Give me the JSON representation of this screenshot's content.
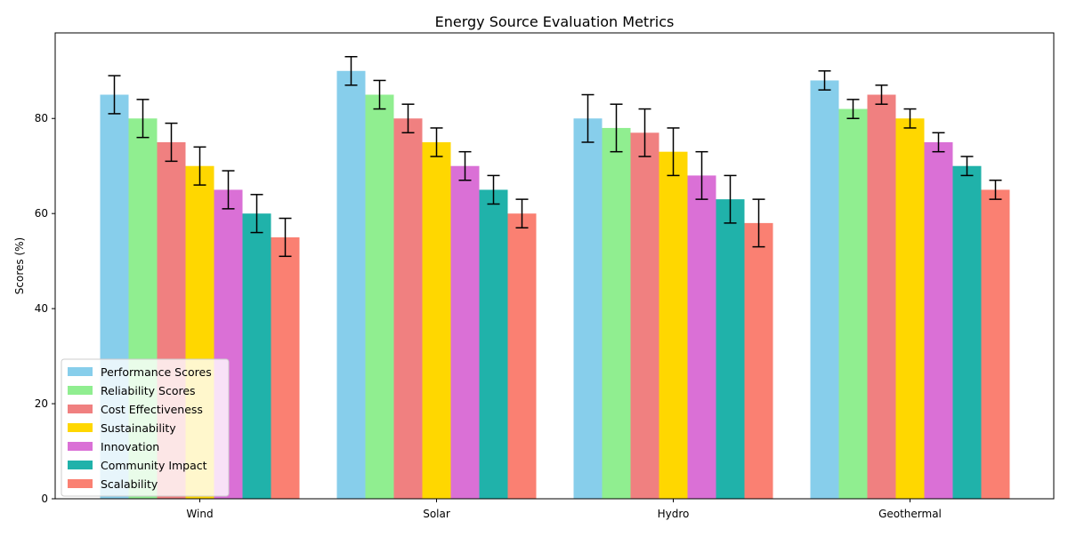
{
  "chart_data": {
    "type": "bar",
    "title": "Energy Source Evaluation Metrics",
    "xlabel": "",
    "ylabel": "Scores (%)",
    "ylim": [
      0,
      98
    ],
    "yticks": [
      0,
      20,
      40,
      60,
      80
    ],
    "categories": [
      "Wind",
      "Solar",
      "Hydro",
      "Geothermal"
    ],
    "legend_position": "lower-left",
    "grid": false,
    "series": [
      {
        "name": "Performance Scores",
        "color": "#87ceeb",
        "values": [
          85,
          90,
          80,
          88
        ],
        "errors": [
          4,
          3,
          5,
          2
        ]
      },
      {
        "name": "Reliability Scores",
        "color": "#90ee90",
        "values": [
          80,
          85,
          78,
          82
        ],
        "errors": [
          4,
          3,
          5,
          2
        ]
      },
      {
        "name": "Cost Effectiveness",
        "color": "#f08080",
        "values": [
          75,
          80,
          77,
          85
        ],
        "errors": [
          4,
          3,
          5,
          2
        ]
      },
      {
        "name": "Sustainability",
        "color": "#ffd700",
        "values": [
          70,
          75,
          73,
          80
        ],
        "errors": [
          4,
          3,
          5,
          2
        ]
      },
      {
        "name": "Innovation",
        "color": "#da70d6",
        "values": [
          65,
          70,
          68,
          75
        ],
        "errors": [
          4,
          3,
          5,
          2
        ]
      },
      {
        "name": "Community Impact",
        "color": "#20b2aa",
        "values": [
          60,
          65,
          63,
          70
        ],
        "errors": [
          4,
          3,
          5,
          2
        ]
      },
      {
        "name": "Scalability",
        "color": "#fa8072",
        "values": [
          55,
          60,
          58,
          65
        ],
        "errors": [
          4,
          3,
          5,
          2
        ]
      }
    ]
  }
}
